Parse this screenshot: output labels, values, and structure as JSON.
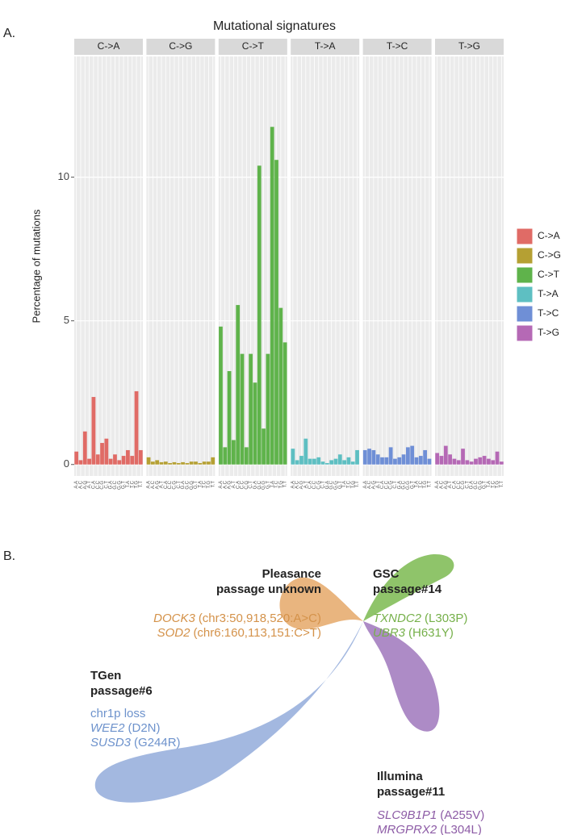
{
  "panel_labels": [
    "A.",
    "B."
  ],
  "chart_data": {
    "type": "bar",
    "title": "Mutational signatures",
    "y_label": "Percentage of mutations",
    "categories": [
      "A.A",
      "A.C",
      "A.G",
      "A.T",
      "C.A",
      "C.C",
      "C.G",
      "C.T",
      "G.A",
      "G.C",
      "G.G",
      "G.T",
      "T.A",
      "T.C",
      "T.G",
      "T.T"
    ],
    "series": [
      {
        "name": "C->A",
        "color": "#e06b66",
        "values": [
          0.45,
          0.15,
          1.15,
          0.2,
          2.35,
          0.35,
          0.75,
          0.9,
          0.2,
          0.35,
          0.15,
          0.3,
          0.5,
          0.3,
          2.55,
          0.5
        ]
      },
      {
        "name": "C->G",
        "color": "#b5a033",
        "values": [
          0.25,
          0.1,
          0.15,
          0.08,
          0.1,
          0.05,
          0.08,
          0.05,
          0.08,
          0.05,
          0.1,
          0.1,
          0.05,
          0.1,
          0.1,
          0.25
        ]
      },
      {
        "name": "C->T",
        "color": "#5fb34b",
        "values": [
          4.8,
          0.6,
          3.25,
          0.85,
          5.55,
          3.85,
          0.6,
          3.85,
          2.85,
          10.4,
          1.25,
          3.85,
          11.75,
          10.6,
          5.45,
          4.25
        ]
      },
      {
        "name": "T->A",
        "color": "#5ebfc2",
        "values": [
          0.55,
          0.15,
          0.3,
          0.9,
          0.2,
          0.2,
          0.25,
          0.1,
          0.05,
          0.15,
          0.2,
          0.35,
          0.15,
          0.25,
          0.1,
          0.5
        ]
      },
      {
        "name": "T->C",
        "color": "#6f8fd6",
        "values": [
          0.5,
          0.55,
          0.5,
          0.35,
          0.25,
          0.25,
          0.6,
          0.2,
          0.25,
          0.35,
          0.6,
          0.65,
          0.25,
          0.3,
          0.5,
          0.2
        ]
      },
      {
        "name": "T->G",
        "color": "#b569b5",
        "values": [
          0.4,
          0.3,
          0.65,
          0.35,
          0.2,
          0.15,
          0.55,
          0.15,
          0.1,
          0.2,
          0.25,
          0.3,
          0.2,
          0.15,
          0.45,
          0.1
        ]
      }
    ],
    "ylim": [
      -0.4,
      14.2
    ],
    "yticks": [
      0,
      5,
      10
    ],
    "grid": true,
    "legend": "right"
  },
  "diagram": {
    "groups": [
      {
        "name": "Pleasance",
        "subtitle": "passage unknown",
        "color": "#d4924a",
        "items": [
          {
            "gene": "DOCK3",
            "detail": "(chr3:50,918,520:A>C)"
          },
          {
            "gene": "SOD2",
            "detail": "(chr6:160,113,151:C>T)"
          }
        ]
      },
      {
        "name": "GSC",
        "subtitle": "passage#14",
        "color": "#76b04a",
        "items": [
          {
            "gene": "TXNDC2",
            "detail": "(L303P)"
          },
          {
            "gene": "UBR3",
            "detail": "(H631Y)"
          }
        ]
      },
      {
        "name": "TGen",
        "subtitle": "passage#6",
        "color": "#6d92cc",
        "items": [
          {
            "detail": "chr1p loss"
          },
          {
            "gene": "WEE2",
            "detail": "(D2N)"
          },
          {
            "gene": "SUSD3",
            "detail": "(G244R)"
          }
        ]
      },
      {
        "name": "Illumina",
        "subtitle": "passage#11",
        "color": "#8d5ca6",
        "items": [
          {
            "gene": "SLC9B1P1",
            "detail": "(A255V)"
          },
          {
            "gene": "MRGPRX2",
            "detail": "(L304L)"
          }
        ]
      }
    ]
  }
}
